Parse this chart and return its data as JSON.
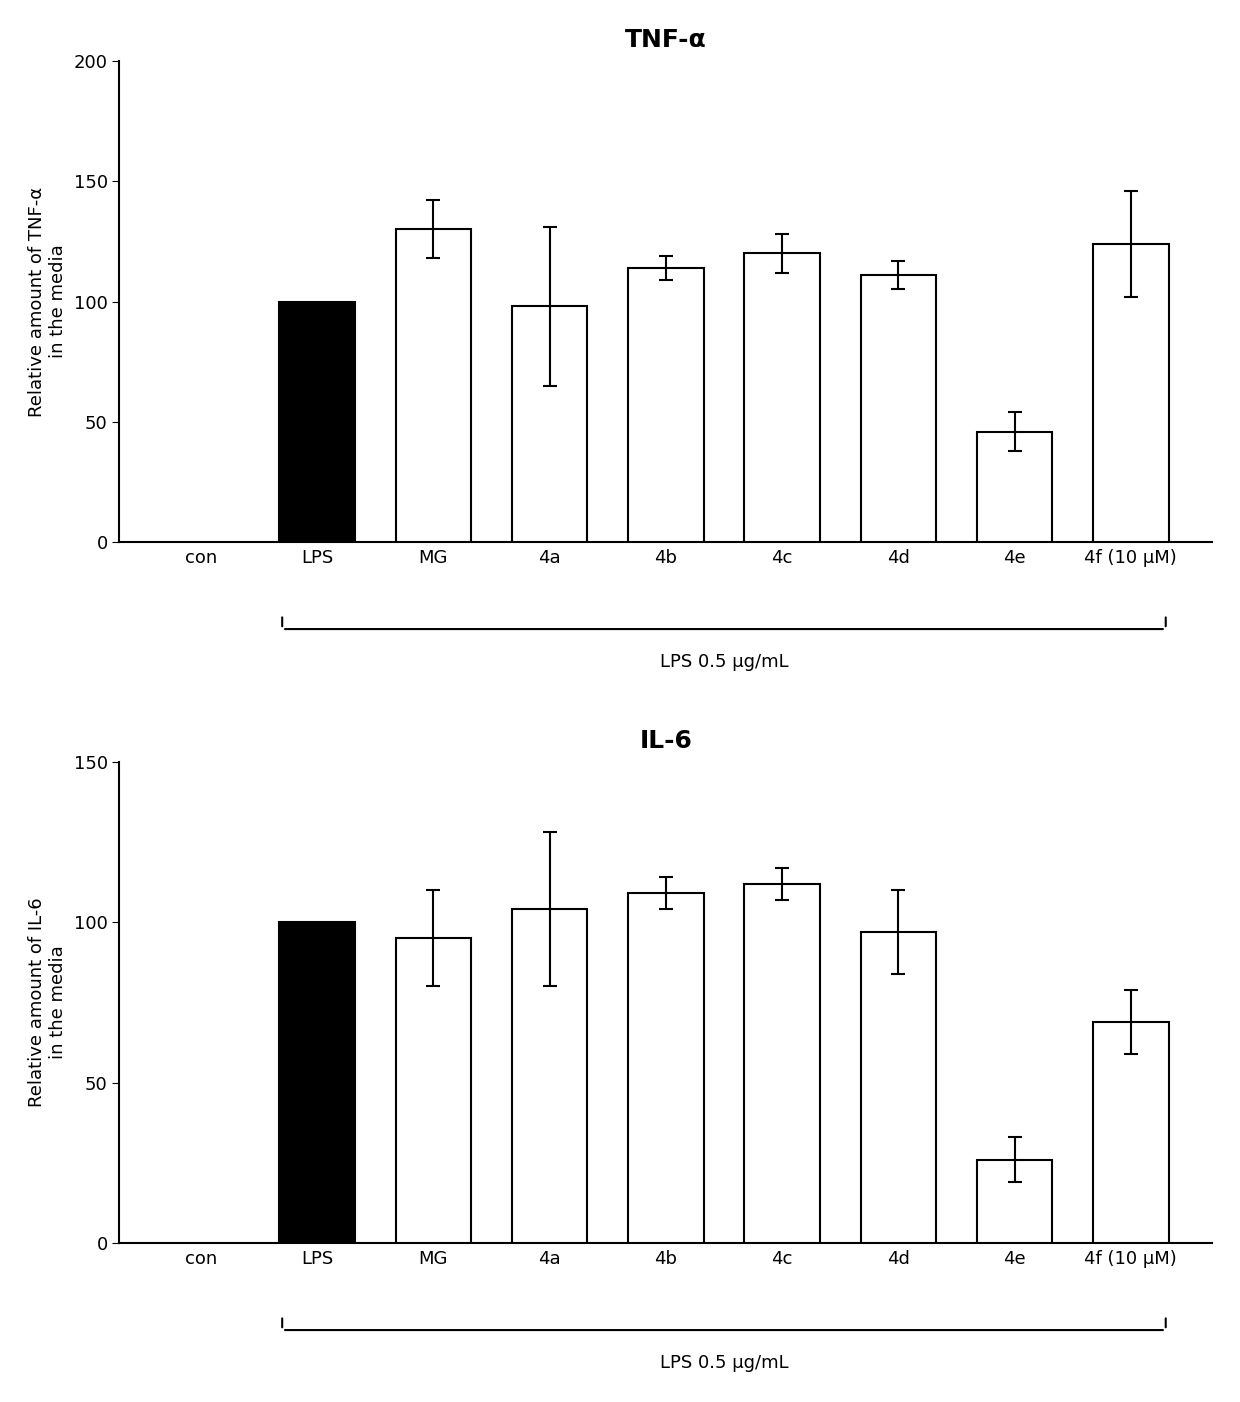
{
  "top": {
    "title": "TNF-α",
    "ylabel": "Relative amount of TNF-α\nin the media",
    "xlabel_bracket": "LPS 0.5 μg/mL",
    "ylim": [
      0,
      200
    ],
    "yticks": [
      0,
      50,
      100,
      150,
      200
    ],
    "categories": [
      "con",
      "LPS",
      "MG",
      "4a",
      "4b",
      "4c",
      "4d",
      "4e",
      "4f (10 μM)"
    ],
    "values": [
      0,
      100,
      130,
      98,
      114,
      120,
      111,
      46,
      124
    ],
    "errors": [
      0,
      0,
      12,
      33,
      5,
      8,
      6,
      8,
      22
    ],
    "bar_colors": [
      "white",
      "black",
      "white",
      "white",
      "white",
      "white",
      "white",
      "white",
      "white"
    ],
    "bar_edgecolors": [
      "white",
      "black",
      "black",
      "black",
      "black",
      "black",
      "black",
      "black",
      "black"
    ]
  },
  "bottom": {
    "title": "IL-6",
    "ylabel": "Relative amount of IL-6\nin the media",
    "xlabel_bracket": "LPS 0.5 μg/mL",
    "ylim": [
      0,
      150
    ],
    "yticks": [
      0,
      50,
      100,
      150
    ],
    "categories": [
      "con",
      "LPS",
      "MG",
      "4a",
      "4b",
      "4c",
      "4d",
      "4e",
      "4f (10 μM)"
    ],
    "values": [
      1,
      100,
      95,
      104,
      109,
      112,
      97,
      26,
      69
    ],
    "errors": [
      0,
      0,
      15,
      24,
      5,
      5,
      13,
      7,
      10
    ],
    "bar_colors": [
      "white",
      "black",
      "white",
      "white",
      "white",
      "white",
      "white",
      "white",
      "white"
    ],
    "bar_edgecolors": [
      "white",
      "black",
      "black",
      "black",
      "black",
      "black",
      "black",
      "black",
      "black"
    ]
  },
  "fig_bg": "white",
  "bar_width": 0.65,
  "title_fontsize": 18,
  "axis_label_fontsize": 13,
  "tick_fontsize": 13,
  "bracket_fontsize": 13,
  "bracket_label_fontsize": 13
}
